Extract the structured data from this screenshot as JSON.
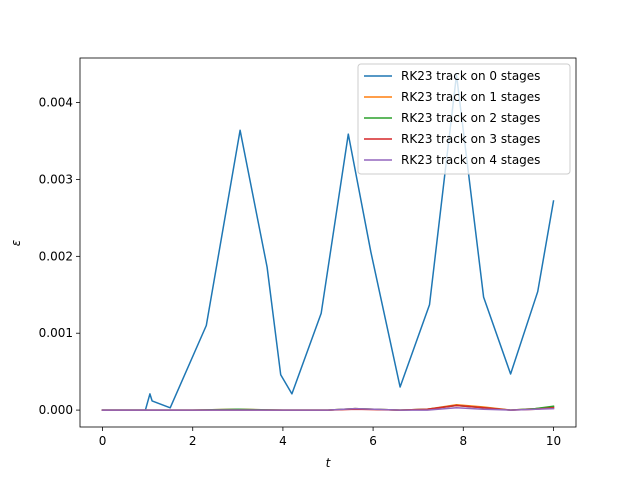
{
  "chart_data": {
    "type": "line",
    "xlabel": "t",
    "ylabel": "ε",
    "xlim": [
      -0.5,
      10.5
    ],
    "ylim": [
      -0.00022,
      0.00458
    ],
    "xticks": [
      0,
      2,
      4,
      6,
      8,
      10
    ],
    "xtick_labels": [
      "0",
      "2",
      "4",
      "6",
      "8",
      "10"
    ],
    "yticks": [
      0,
      0.001,
      0.002,
      0.003,
      0.004
    ],
    "ytick_labels": [
      "0.000",
      "0.001",
      "0.002",
      "0.003",
      "0.004"
    ],
    "legend_position": "upper right",
    "series": [
      {
        "name": "RK23 track on 0 stages",
        "color": "#1f77b4",
        "x": [
          0,
          0.5,
          0.95,
          1.05,
          1.1,
          1.5,
          2.3,
          3.05,
          3.65,
          3.95,
          4.2,
          4.85,
          5.45,
          5.95,
          6.6,
          7.25,
          7.85,
          8.45,
          9.05,
          9.65,
          10.0
        ],
        "y": [
          0,
          0,
          0,
          0.00021,
          0.00012,
          3e-05,
          0.0011,
          0.00364,
          0.00186,
          0.00046,
          0.00021,
          0.00126,
          0.00359,
          0.00206,
          0.0003,
          0.00137,
          0.00436,
          0.00147,
          0.00047,
          0.00154,
          0.00272
        ]
      },
      {
        "name": "RK23 track on 1 stages",
        "color": "#ff7f0e",
        "x": [
          0,
          1,
          2,
          3,
          4,
          5,
          5.6,
          6.6,
          7.2,
          7.85,
          8.45,
          9.05,
          9.6,
          10.0
        ],
        "y": [
          0,
          0,
          0,
          1e-05,
          0,
          0,
          2e-05,
          0,
          1e-05,
          7e-05,
          4e-05,
          0,
          2e-05,
          4e-05
        ]
      },
      {
        "name": "RK23 track on 2 stages",
        "color": "#2ca02c",
        "x": [
          0,
          1,
          2,
          3,
          4,
          5,
          5.6,
          6.6,
          7.2,
          7.85,
          8.45,
          9.05,
          9.6,
          10.0
        ],
        "y": [
          0,
          0,
          0,
          1e-05,
          0,
          0,
          2e-05,
          0,
          1e-05,
          6e-05,
          3e-05,
          0,
          2e-05,
          5e-05
        ]
      },
      {
        "name": "RK23 track on 3 stages",
        "color": "#d62728",
        "x": [
          0,
          1,
          2,
          3,
          4,
          5,
          5.6,
          6.6,
          7.2,
          7.85,
          8.45,
          9.05,
          9.6,
          10.0
        ],
        "y": [
          0,
          0,
          0,
          0,
          0,
          0,
          1e-05,
          0,
          1e-05,
          6e-05,
          3e-05,
          0,
          1e-05,
          3e-05
        ]
      },
      {
        "name": "RK23 track on 4 stages",
        "color": "#9467bd",
        "x": [
          0,
          1,
          2,
          3,
          4,
          5,
          5.6,
          6.6,
          7.2,
          7.85,
          8.45,
          9.05,
          9.6,
          10.0
        ],
        "y": [
          0,
          0,
          0,
          0,
          0,
          0,
          2e-05,
          0,
          0,
          3e-05,
          1e-05,
          0,
          1e-05,
          2e-05
        ]
      }
    ]
  }
}
